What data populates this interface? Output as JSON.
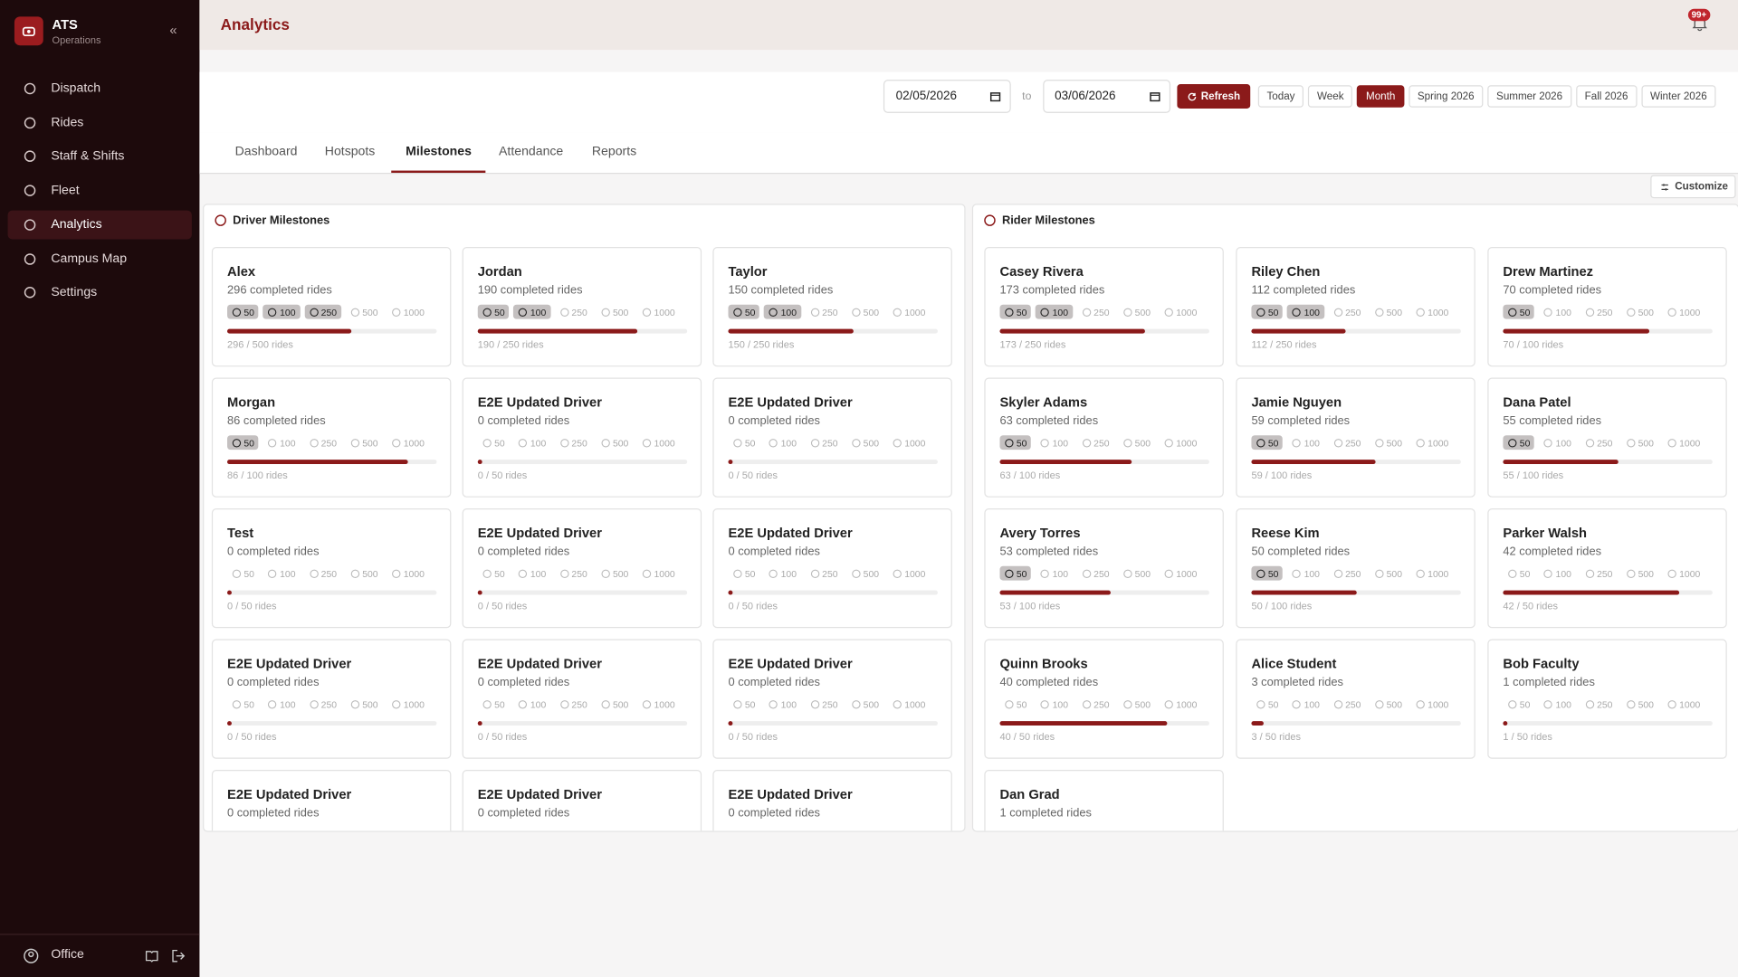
{
  "app": {
    "name": "ATS",
    "subtitle": "Operations"
  },
  "nav": [
    "Dispatch",
    "Rides",
    "Staff & Shifts",
    "Fleet",
    "Analytics",
    "Campus Map",
    "Settings"
  ],
  "user": "Office",
  "header": {
    "title": "Analytics",
    "notifications": "99+"
  },
  "filters": {
    "from": "02/05/2026",
    "to_label": "to",
    "to": "03/06/2026",
    "refresh": "Refresh",
    "ranges": [
      "Today",
      "Week",
      "Month",
      "Spring 2026",
      "Summer 2026",
      "Fall 2026",
      "Winter 2026"
    ]
  },
  "tabs": [
    "Dashboard",
    "Hotspots",
    "Milestones",
    "Attendance",
    "Reports"
  ],
  "customize": "Customize",
  "milestone_levels": [
    50,
    100,
    250,
    500,
    1000
  ],
  "panels": [
    {
      "title": "Driver Milestones",
      "cards": [
        {
          "name": "Alex",
          "completed": "296 completed rides",
          "earned": 3,
          "progress": {
            "value": 296,
            "max": 500,
            "label": "296 / 500 rides"
          }
        },
        {
          "name": "Jordan",
          "completed": "190 completed rides",
          "earned": 2,
          "progress": {
            "value": 190,
            "max": 250,
            "label": "190 / 250 rides"
          }
        },
        {
          "name": "Taylor",
          "completed": "150 completed rides",
          "earned": 2,
          "progress": {
            "value": 150,
            "max": 250,
            "label": "150 / 250 rides"
          }
        },
        {
          "name": "Morgan",
          "completed": "86 completed rides",
          "earned": 1,
          "progress": {
            "value": 86,
            "max": 100,
            "label": "86 / 100 rides"
          }
        },
        {
          "name": "E2E Updated Driver",
          "completed": "0 completed rides",
          "earned": 0,
          "progress": {
            "value": 0,
            "max": 50,
            "label": "0 / 50 rides"
          }
        },
        {
          "name": "E2E Updated Driver",
          "completed": "0 completed rides",
          "earned": 0,
          "progress": {
            "value": 0,
            "max": 50,
            "label": "0 / 50 rides"
          }
        },
        {
          "name": "Test",
          "completed": "0 completed rides",
          "earned": 0,
          "progress": {
            "value": 0,
            "max": 50,
            "label": "0 / 50 rides"
          }
        },
        {
          "name": "E2E Updated Driver",
          "completed": "0 completed rides",
          "earned": 0,
          "progress": {
            "value": 0,
            "max": 50,
            "label": "0 / 50 rides"
          }
        },
        {
          "name": "E2E Updated Driver",
          "completed": "0 completed rides",
          "earned": 0,
          "progress": {
            "value": 0,
            "max": 50,
            "label": "0 / 50 rides"
          }
        },
        {
          "name": "E2E Updated Driver",
          "completed": "0 completed rides",
          "earned": 0,
          "progress": {
            "value": 0,
            "max": 50,
            "label": "0 / 50 rides"
          }
        },
        {
          "name": "E2E Updated Driver",
          "completed": "0 completed rides",
          "earned": 0,
          "progress": {
            "value": 0,
            "max": 50,
            "label": "0 / 50 rides"
          }
        },
        {
          "name": "E2E Updated Driver",
          "completed": "0 completed rides",
          "earned": 0,
          "progress": {
            "value": 0,
            "max": 50,
            "label": "0 / 50 rides"
          }
        },
        {
          "name": "E2E Updated Driver",
          "completed": "0 completed rides",
          "earned": 0
        },
        {
          "name": "E2E Updated Driver",
          "completed": "0 completed rides",
          "earned": 0
        },
        {
          "name": "E2E Updated Driver",
          "completed": "0 completed rides",
          "earned": 0
        }
      ]
    },
    {
      "title": "Rider Milestones",
      "cards": [
        {
          "name": "Casey Rivera",
          "completed": "173 completed rides",
          "earned": 2,
          "progress": {
            "value": 173,
            "max": 250,
            "label": "173 / 250 rides"
          }
        },
        {
          "name": "Riley Chen",
          "completed": "112 completed rides",
          "earned": 2,
          "progress": {
            "value": 112,
            "max": 250,
            "label": "112 / 250 rides"
          }
        },
        {
          "name": "Drew Martinez",
          "completed": "70 completed rides",
          "earned": 1,
          "progress": {
            "value": 70,
            "max": 100,
            "label": "70 / 100 rides"
          }
        },
        {
          "name": "Skyler Adams",
          "completed": "63 completed rides",
          "earned": 1,
          "progress": {
            "value": 63,
            "max": 100,
            "label": "63 / 100 rides"
          }
        },
        {
          "name": "Jamie Nguyen",
          "completed": "59 completed rides",
          "earned": 1,
          "progress": {
            "value": 59,
            "max": 100,
            "label": "59 / 100 rides"
          }
        },
        {
          "name": "Dana Patel",
          "completed": "55 completed rides",
          "earned": 1,
          "progress": {
            "value": 55,
            "max": 100,
            "label": "55 / 100 rides"
          }
        },
        {
          "name": "Avery Torres",
          "completed": "53 completed rides",
          "earned": 1,
          "progress": {
            "value": 53,
            "max": 100,
            "label": "53 / 100 rides"
          }
        },
        {
          "name": "Reese Kim",
          "completed": "50 completed rides",
          "earned": 1,
          "progress": {
            "value": 50,
            "max": 100,
            "label": "50 / 100 rides"
          }
        },
        {
          "name": "Parker Walsh",
          "completed": "42 completed rides",
          "earned": 0,
          "progress": {
            "value": 42,
            "max": 50,
            "label": "42 / 50 rides"
          }
        },
        {
          "name": "Quinn Brooks",
          "completed": "40 completed rides",
          "earned": 0,
          "progress": {
            "value": 40,
            "max": 50,
            "label": "40 / 50 rides"
          }
        },
        {
          "name": "Alice Student",
          "completed": "3 completed rides",
          "earned": 0,
          "progress": {
            "value": 3,
            "max": 50,
            "label": "3 / 50 rides"
          }
        },
        {
          "name": "Bob Faculty",
          "completed": "1 completed rides",
          "earned": 0,
          "progress": {
            "value": 1,
            "max": 50,
            "label": "1 / 50 rides"
          }
        },
        {
          "name": "Dan Grad",
          "completed": "1 completed rides",
          "earned": 0
        }
      ]
    }
  ]
}
